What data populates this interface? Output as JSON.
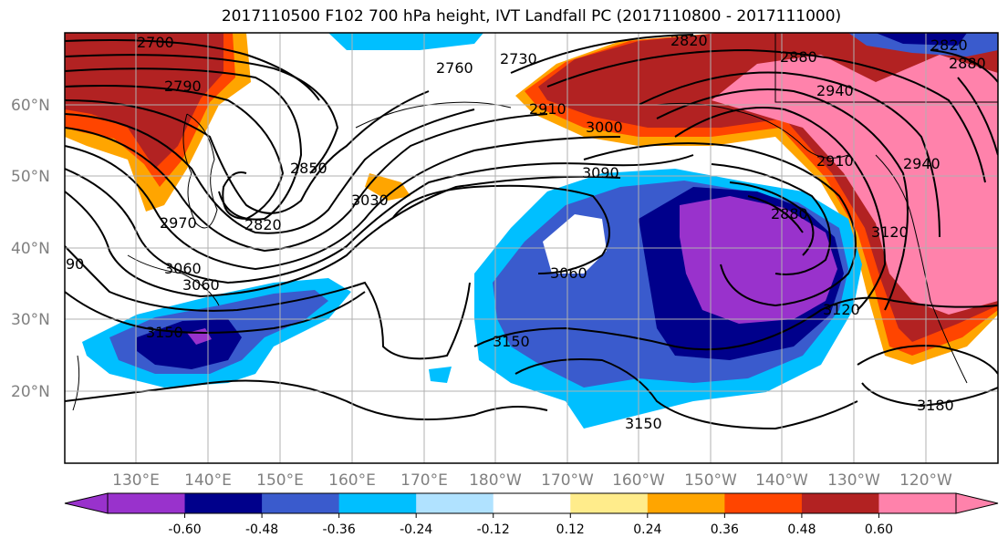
{
  "title": "2017110500 F102 700 hPa height, IVT Landfall PC (2017110800 - 2017111000)",
  "latitude_labels": [
    "60°N",
    "50°N",
    "40°N",
    "30°N",
    "20°N"
  ],
  "longitude_labels": [
    "130°E",
    "140°E",
    "150°E",
    "160°E",
    "170°E",
    "180°W",
    "170°W",
    "160°W",
    "150°W",
    "140°W",
    "130°W",
    "120°W"
  ],
  "contour_labels": [
    "2700",
    "2730",
    "2760",
    "2790",
    "2820",
    "2850",
    "2880",
    "2910",
    "2940",
    "3000",
    "3030",
    "3060",
    "3090",
    "3120",
    "3150",
    "3180",
    "2820",
    "2880",
    "2910",
    "2940",
    "2970",
    "3060",
    "3150",
    "2880",
    "2820",
    "3120",
    "3150",
    "90",
    "3060"
  ],
  "colorbar": {
    "tick_labels": [
      "-0.60",
      "-0.48",
      "-0.36",
      "-0.24",
      "-0.12",
      "0.12",
      "0.24",
      "0.36",
      "0.48",
      "0.60"
    ],
    "colors": [
      "#9932cc",
      "#00008b",
      "#3a5bcd",
      "#00bfff",
      "#b0e2ff",
      "#ffffff",
      "#ffec8b",
      "#ffa500",
      "#ff4500",
      "#b22222",
      "#ff82ab"
    ]
  },
  "colors": {
    "strong_negative": "#00008b",
    "negative": "#3a5bcd",
    "weak_negative": "#00bfff",
    "positive": "#ffa500",
    "strong_positive": "#b22222",
    "extreme_positive": "#ff82ab",
    "extreme_negative": "#9932cc"
  }
}
